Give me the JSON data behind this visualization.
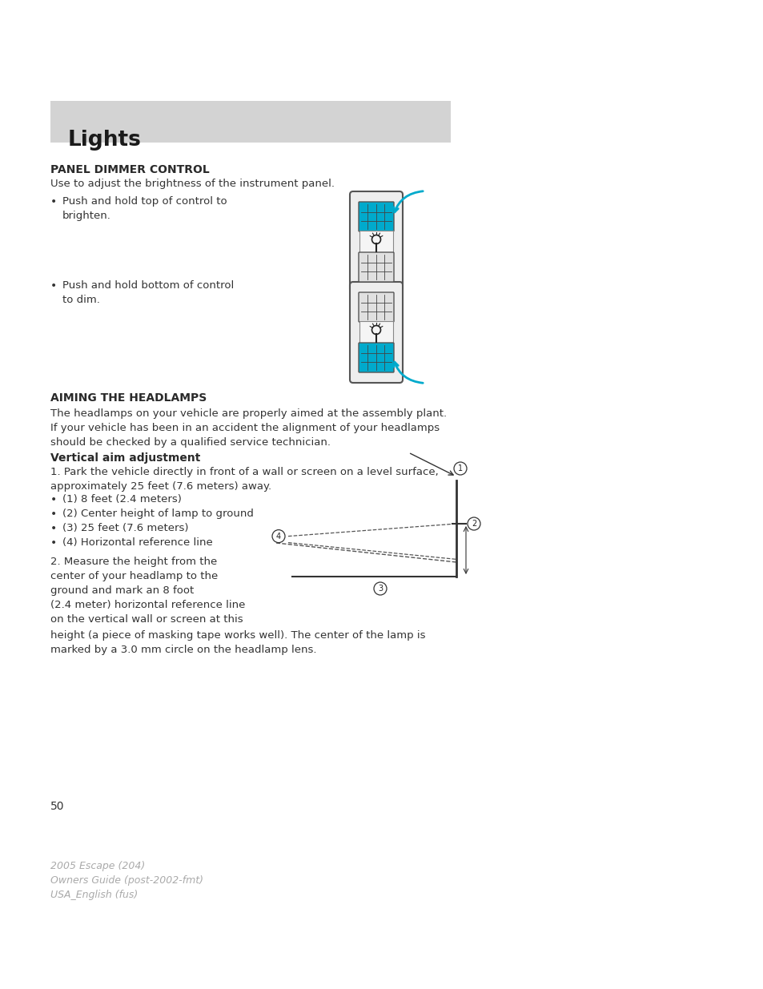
{
  "bg_color": "#ffffff",
  "header_bg": "#d3d3d3",
  "header_text": "Lights",
  "header_text_color": "#1a1a1a",
  "page_number": "50",
  "footer_line1": "2005 Escape (204)",
  "footer_line2": "Owners Guide (post-2002-fmt)",
  "footer_line3": "USA_English (fus)",
  "section1_title": "PANEL DIMMER CONTROL",
  "section1_intro": "Use to adjust the brightness of the instrument panel.",
  "bullet1": "Push and hold top of control to\nbrighten.",
  "bullet2": "Push and hold bottom of control\nto dim.",
  "section2_title": "AIMING THE HEADLAMPS",
  "section2_intro": "The headlamps on your vehicle are properly aimed at the assembly plant.\nIf your vehicle has been in an accident the alignment of your headlamps\nshould be checked by a qualified service technician.",
  "subsection_title": "Vertical aim adjustment",
  "step1": "1. Park the vehicle directly in front of a wall or screen on a level surface,\napproximately 25 feet (7.6 meters) away.",
  "bullets_aim": [
    "(1) 8 feet (2.4 meters)",
    "(2) Center height of lamp to ground",
    "(3) 25 feet (7.6 meters)",
    "(4) Horizontal reference line"
  ],
  "step2_left": "2. Measure the height from the\ncenter of your headlamp to the\nground and mark an 8 foot\n(2.4 meter) horizontal reference line\non the vertical wall or screen at this",
  "step2_right": "height (a piece of masking tape works well). The center of the lamp is\nmarked by a 3.0 mm circle on the headlamp lens.",
  "arrow_color": "#00aacc",
  "grid_color": "#00aacc",
  "text_color": "#2a2a2a",
  "body_text_color": "#333333"
}
